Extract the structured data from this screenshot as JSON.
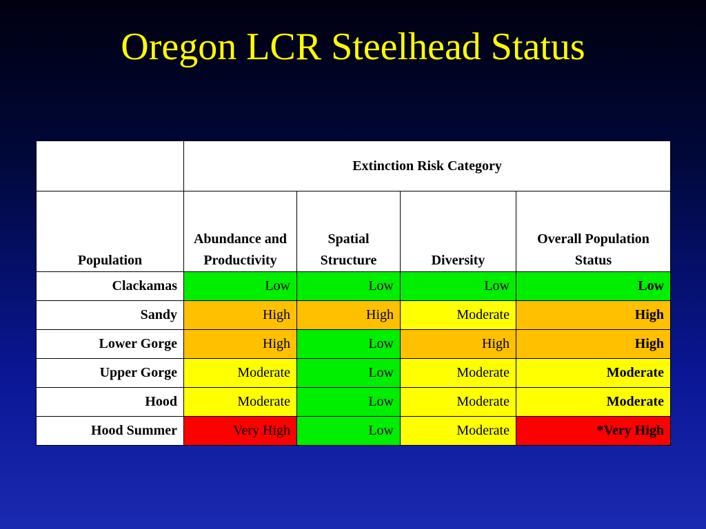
{
  "slide": {
    "title": "Oregon LCR Steelhead Status"
  },
  "table": {
    "group_header": "Extinction Risk Category",
    "column_headers": {
      "population": "Population",
      "abundance": "Abundance and Productivity",
      "spatial": "Spatial Structure",
      "diversity": "Diversity",
      "overall": "Overall Population Status"
    },
    "level_colors": {
      "Low": "#00ee00",
      "Moderate": "#ffff00",
      "High": "#ffc000",
      "Very High": "#ff0000"
    },
    "rows": [
      {
        "population": "Clackamas",
        "abundance": "Low",
        "spatial": "Low",
        "diversity": "Low",
        "overall": "Low",
        "overall_level": "Low"
      },
      {
        "population": "Sandy",
        "abundance": "High",
        "spatial": "High",
        "diversity": "Moderate",
        "overall": "High",
        "overall_level": "High"
      },
      {
        "population": "Lower Gorge",
        "abundance": "High",
        "spatial": "Low",
        "diversity": "High",
        "overall": "High",
        "overall_level": "High"
      },
      {
        "population": "Upper Gorge",
        "abundance": "Moderate",
        "spatial": "Low",
        "diversity": "Moderate",
        "overall": "Moderate",
        "overall_level": "Moderate"
      },
      {
        "population": "Hood",
        "abundance": "Moderate",
        "spatial": "Low",
        "diversity": "Moderate",
        "overall": "Moderate",
        "overall_level": "Moderate"
      },
      {
        "population": "Hood Summer",
        "abundance": "Very High",
        "spatial": "Low",
        "diversity": "Moderate",
        "overall": "*Very High",
        "overall_level": "Very High"
      }
    ]
  }
}
